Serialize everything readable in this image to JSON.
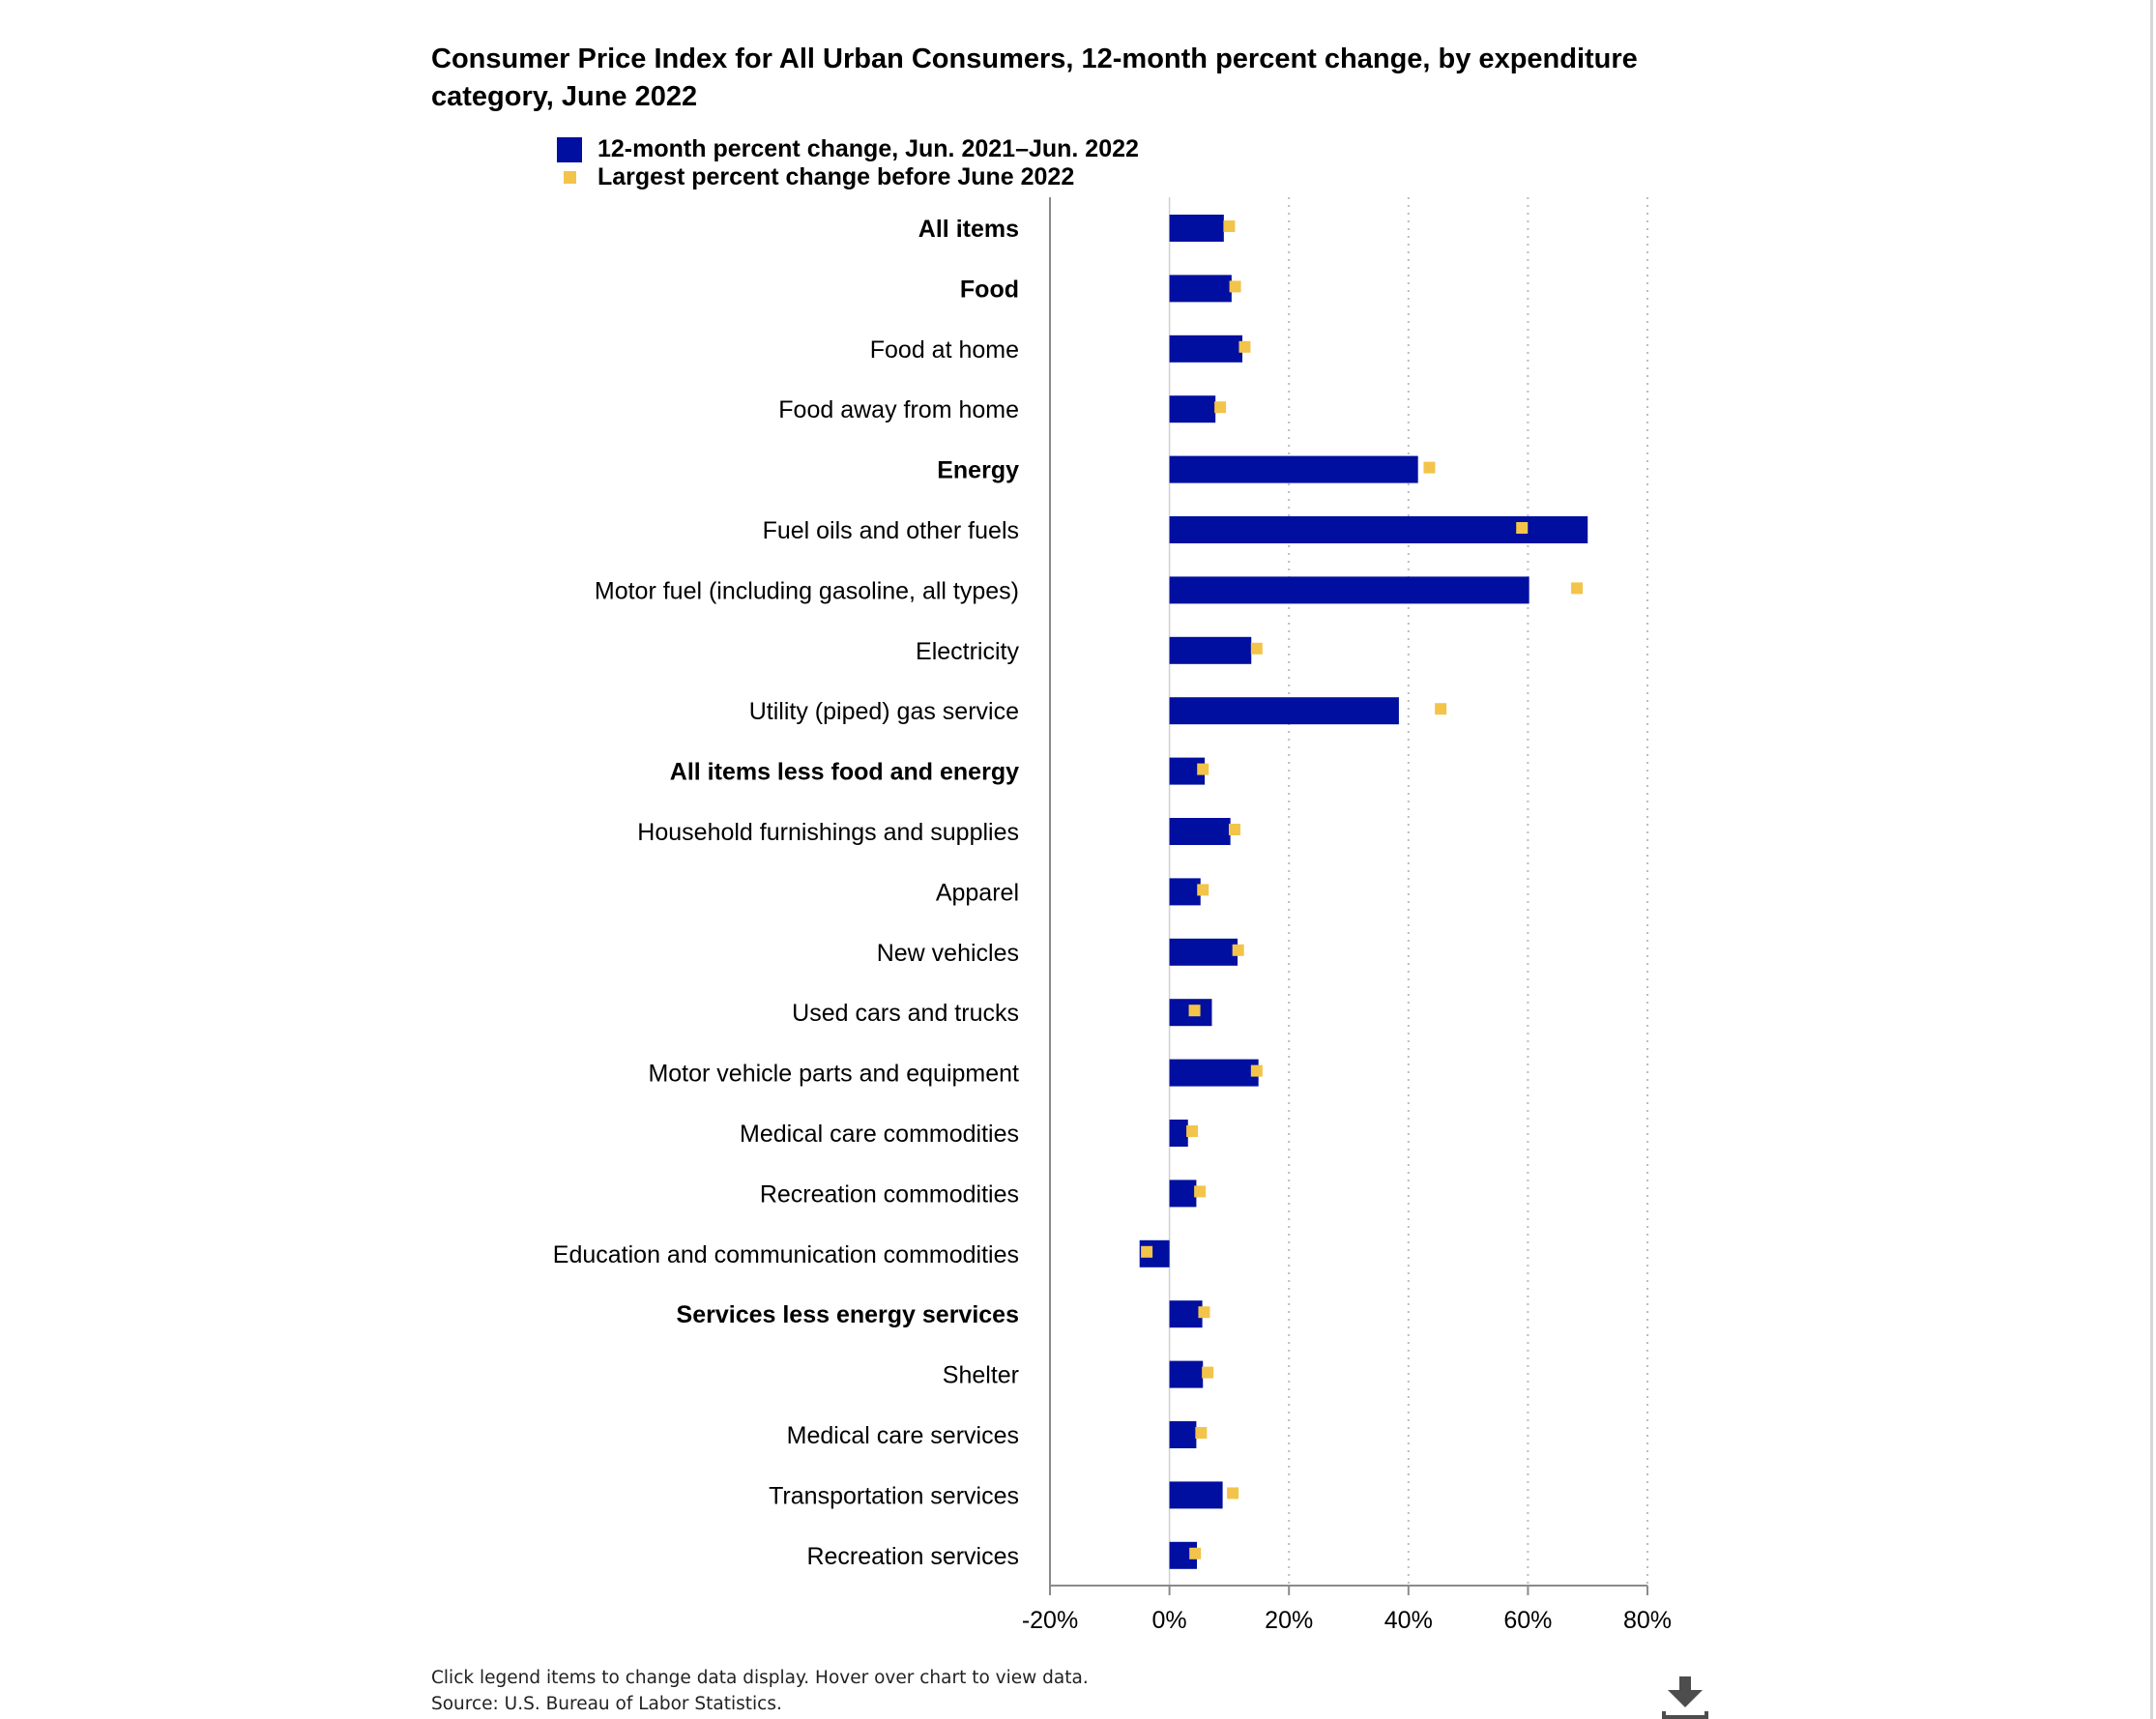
{
  "chart_data": {
    "type": "bar",
    "orientation": "horizontal",
    "title": "Consumer Price Index for All Urban Consumers, 12-month percent change, by expenditure category, June 2022",
    "categories": [
      "All items",
      "Food",
      "Food at home",
      "Food away from home",
      "Energy",
      "Fuel oils and other fuels",
      "Motor fuel (including gasoline, all types)",
      "Electricity",
      "Utility (piped) gas service",
      "All items less food and energy",
      "Household furnishings and supplies",
      "Apparel",
      "New vehicles",
      "Used cars and trucks",
      "Motor vehicle parts and equipment",
      "Medical care commodities",
      "Recreation commodities",
      "Education and communication commodities",
      "Services less energy services",
      "Shelter",
      "Medical care services",
      "Transportation services",
      "Recreation services"
    ],
    "bold_categories": [
      "All items",
      "Food",
      "Energy",
      "All items less food and energy",
      "Services less energy services"
    ],
    "series": [
      {
        "name": "12-month percent change, Jun. 2021–Jun. 2022",
        "marker": "bar",
        "color": "#000f9f",
        "values": [
          9.1,
          10.4,
          12.2,
          7.7,
          41.6,
          70.0,
          60.2,
          13.7,
          38.4,
          5.9,
          10.2,
          5.2,
          11.4,
          7.1,
          14.9,
          3.1,
          4.5,
          -5.0,
          5.5,
          5.6,
          4.5,
          8.9,
          4.6
        ]
      },
      {
        "name": "Largest percent change before June 2022",
        "marker": "square",
        "color": "#f3c44a",
        "values": [
          10.0,
          11.0,
          12.6,
          8.5,
          43.5,
          59.0,
          68.2,
          14.6,
          45.4,
          5.6,
          10.9,
          5.6,
          11.5,
          4.2,
          14.6,
          3.8,
          5.1,
          -3.8,
          5.8,
          6.4,
          5.3,
          10.6,
          4.3
        ]
      }
    ],
    "xlim": [
      -20,
      80
    ],
    "xticks": [
      -20,
      0,
      20,
      40,
      60,
      80
    ],
    "xtick_labels": [
      "-20%",
      "0%",
      "20%",
      "40%",
      "60%",
      "80%"
    ],
    "grid": "vertical dotted lines at 20%, 40%, 60%, 80%",
    "legend_position": "top-left"
  },
  "footer": {
    "note": "Click legend items to change data display. Hover over chart to view data.",
    "source": "Source: U.S. Bureau of Labor Statistics."
  },
  "icons": {
    "download": "download-icon"
  }
}
